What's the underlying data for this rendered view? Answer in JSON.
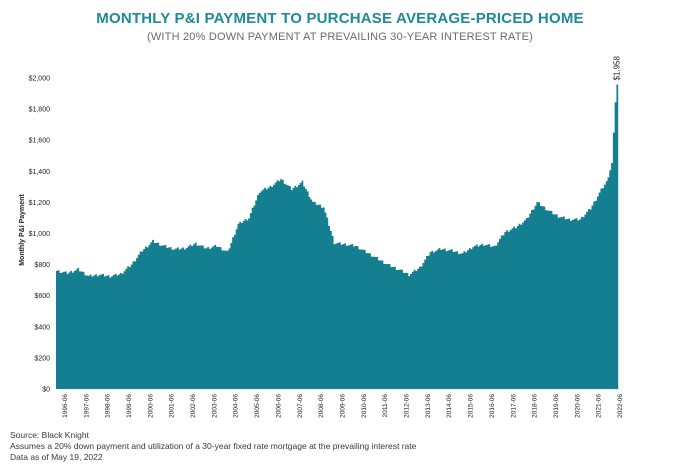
{
  "header": {
    "title": "MONTHLY P&I PAYMENT TO PURCHASE AVERAGE-PRICED HOME",
    "subtitle": "(WITH 20% DOWN PAYMENT AT PREVAILING 30-YEAR INTEREST RATE)"
  },
  "footer": {
    "source": "Source: Black Knight",
    "note": "Assumes a 20% down payment and utilization of a 30-year fixed rate mortgage at the prevailing interest rate",
    "date": "Data as of May 19, 2022"
  },
  "colors": {
    "area": "#137f91",
    "title": "#1d8a9a"
  },
  "chart_data": {
    "type": "area",
    "ylabel": "Monthly P&I Payment",
    "xlabel": "",
    "ylim": [
      0,
      2000
    ],
    "yticks": [
      "$0",
      "$200",
      "$400",
      "$600",
      "$800",
      "$1,000",
      "$1,200",
      "$1,400",
      "$1,600",
      "$1,800",
      "$2,000"
    ],
    "ytick_values": [
      0,
      200,
      400,
      600,
      800,
      1000,
      1200,
      1400,
      1600,
      1800,
      2000
    ],
    "xticks": [
      "1996-06",
      "1997-06",
      "1998-06",
      "1999-06",
      "2000-06",
      "2001-06",
      "2002-06",
      "2003-06",
      "2004-06",
      "2005-06",
      "2006-06",
      "2007-06",
      "2008-06",
      "2009-06",
      "2010-06",
      "2011-06",
      "2012-06",
      "2013-06",
      "2014-06",
      "2015-06",
      "2016-06",
      "2017-06",
      "2018-06",
      "2019-06",
      "2020-06",
      "2021-06",
      "2022-06"
    ],
    "xlim": [
      "1996-01",
      "2022-06"
    ],
    "annotation": {
      "label": "$1,958",
      "x": "2022-04",
      "y": 1958
    },
    "series": [
      {
        "x": [
          "1996-01",
          "1996-07",
          "1997-01",
          "1997-07",
          "1998-01",
          "1998-07",
          "1999-01",
          "1999-07",
          "2000-01",
          "2000-07",
          "2001-01",
          "2001-07",
          "2002-01",
          "2002-07",
          "2003-01",
          "2003-07",
          "2004-01",
          "2004-07",
          "2005-01",
          "2005-07",
          "2006-01",
          "2006-07",
          "2007-01",
          "2007-07",
          "2008-01",
          "2008-07",
          "2009-01",
          "2009-07",
          "2010-01",
          "2010-07",
          "2011-01",
          "2011-07",
          "2012-01",
          "2012-07",
          "2013-01",
          "2013-07",
          "2014-01",
          "2014-07",
          "2015-01",
          "2015-07",
          "2016-01",
          "2016-07",
          "2017-01",
          "2017-07",
          "2018-01",
          "2018-07",
          "2019-01",
          "2019-07",
          "2020-01",
          "2020-07",
          "2021-01",
          "2021-07",
          "2021-10",
          "2022-01",
          "2022-02",
          "2022-03",
          "2022-04"
        ],
        "values": [
          760,
          745,
          770,
          725,
          735,
          725,
          740,
          800,
          890,
          950,
          920,
          900,
          905,
          935,
          905,
          920,
          880,
          1060,
          1100,
          1270,
          1300,
          1350,
          1285,
          1330,
          1200,
          1170,
          940,
          930,
          920,
          880,
          840,
          800,
          770,
          735,
          780,
          880,
          900,
          890,
          870,
          915,
          930,
          915,
          1010,
          1040,
          1090,
          1200,
          1150,
          1110,
          1090,
          1090,
          1160,
          1280,
          1330,
          1450,
          1640,
          1850,
          1958
        ]
      }
    ]
  }
}
